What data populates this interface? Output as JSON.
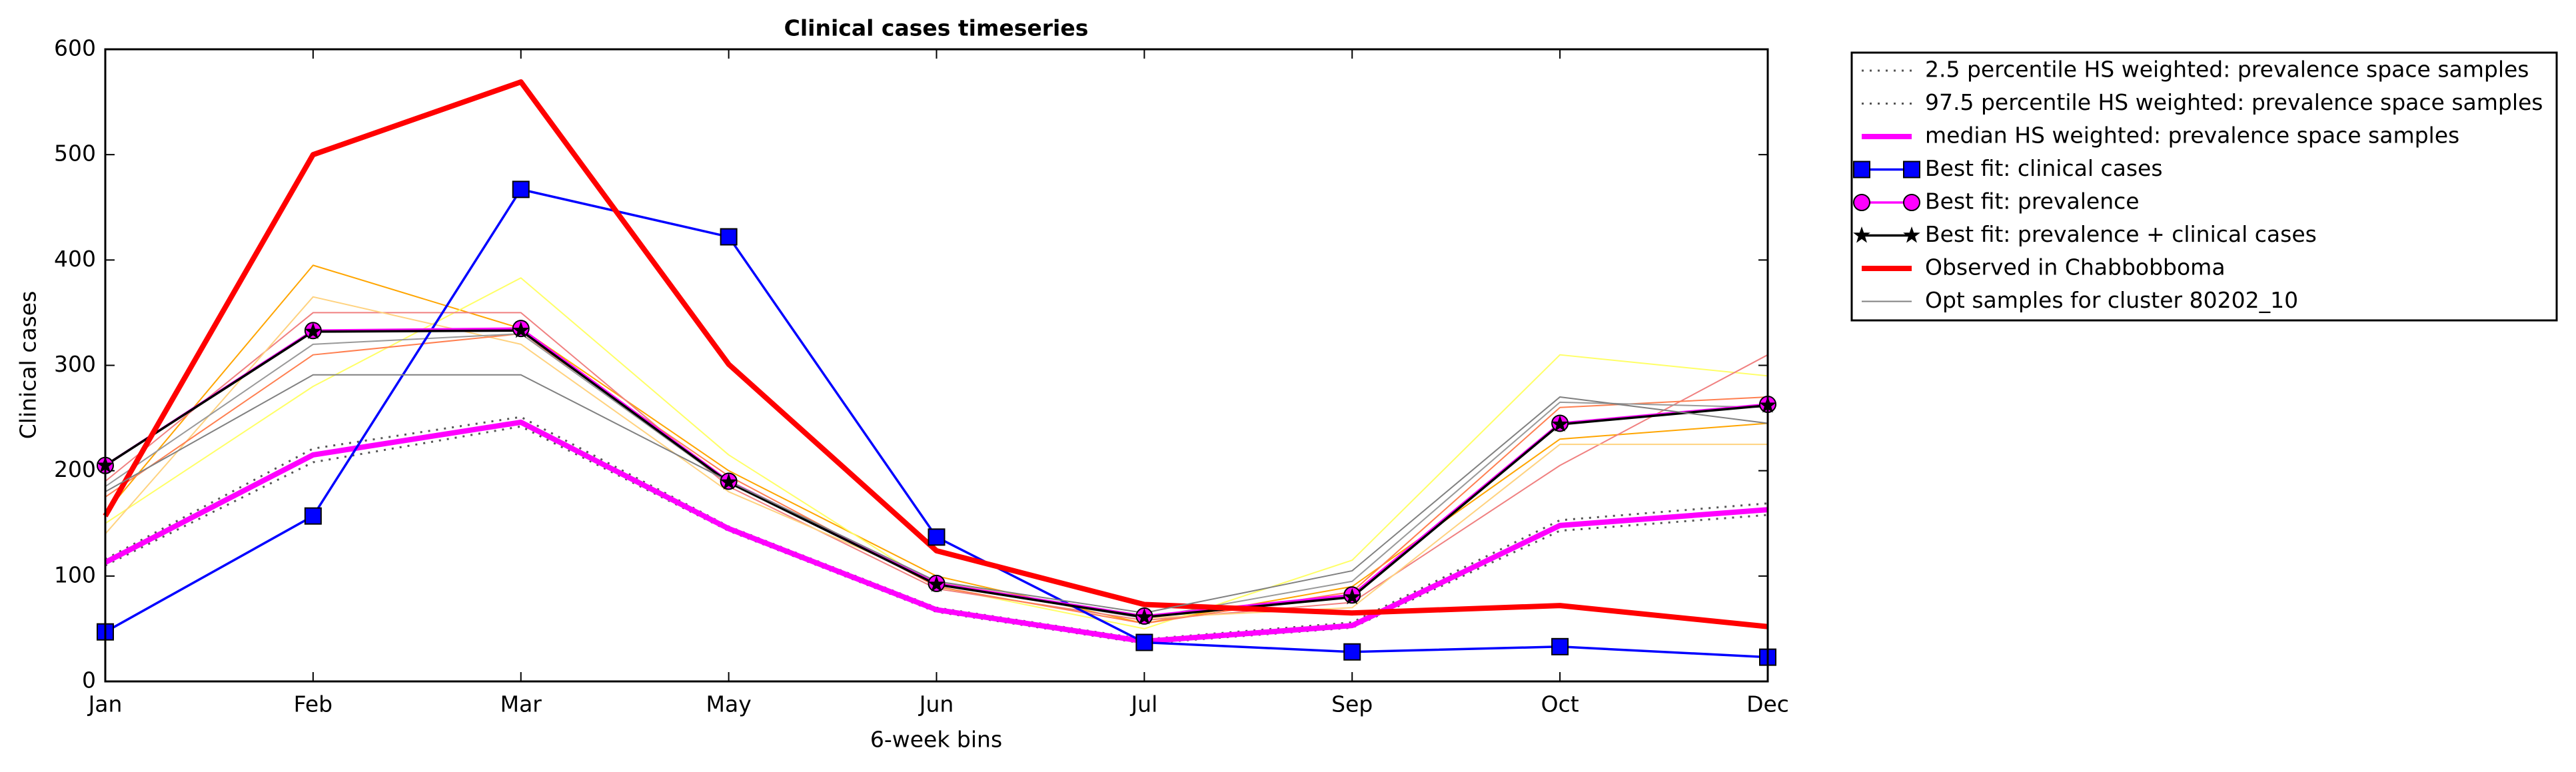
{
  "chart_data": {
    "type": "line",
    "title": "Clinical cases timeseries",
    "x_label": "6-week bins",
    "y_label": "Clinical cases",
    "categories": [
      "Jan",
      "Feb",
      "Mar",
      "May",
      "Jun",
      "Jul",
      "Sep",
      "Oct",
      "Dec"
    ],
    "ylim": [
      0,
      600
    ],
    "yticks": [
      0,
      100,
      200,
      300,
      400,
      500,
      600
    ],
    "legend": "outside-upper-right",
    "extra_lines": [
      {
        "color": "#ffa500",
        "values": [
          160,
          395,
          335,
          200,
          100,
          55,
          90,
          230,
          245
        ]
      },
      {
        "color": "#ffff66",
        "values": [
          150,
          280,
          383,
          215,
          90,
          50,
          115,
          310,
          290
        ]
      },
      {
        "color": "#f08080",
        "values": [
          190,
          350,
          350,
          185,
          88,
          58,
          75,
          205,
          310
        ]
      },
      {
        "color": "#ffd27f",
        "values": [
          140,
          365,
          320,
          180,
          95,
          60,
          70,
          225,
          225
        ]
      },
      {
        "color": "#ff7f50",
        "values": [
          175,
          310,
          330,
          195,
          90,
          55,
          85,
          260,
          270
        ]
      },
      {
        "color": "#999999",
        "values": [
          185,
          320,
          330,
          188,
          92,
          60,
          95,
          265,
          260
        ]
      }
    ],
    "series": [
      {
        "name": "2.5 percentile HS weighted: prevalence space samples",
        "color": "#555555",
        "style": "dotted",
        "marker": "none",
        "values": [
          110,
          208,
          242,
          143,
          66,
          36,
          51,
          143,
          158
        ]
      },
      {
        "name": "97.5 percentile HS weighted: prevalence space samples",
        "color": "#555555",
        "style": "dotted",
        "marker": "none",
        "values": [
          116,
          221,
          251,
          147,
          70,
          40,
          56,
          153,
          169
        ]
      },
      {
        "name": "median HS weighted: prevalence space samples",
        "color": "#ff00ff",
        "style": "thick",
        "marker": "none",
        "values": [
          113,
          215,
          246,
          145,
          68,
          38,
          53,
          148,
          163
        ]
      },
      {
        "name": "Best fit: clinical cases",
        "color": "#0000ff",
        "style": "solid",
        "marker": "square",
        "values": [
          47,
          157,
          467,
          422,
          137,
          37,
          28,
          33,
          23
        ]
      },
      {
        "name": "Best fit: prevalence",
        "color": "#ff00ff",
        "style": "solid",
        "marker": "circle",
        "values": [
          205,
          333,
          335,
          190,
          93,
          62,
          82,
          245,
          263
        ]
      },
      {
        "name": "Best fit: prevalence + clinical cases",
        "color": "#000000",
        "style": "solid",
        "marker": "star",
        "values": [
          205,
          332,
          333,
          189,
          92,
          61,
          80,
          244,
          262
        ]
      },
      {
        "name": "Observed in Chabbobboma",
        "color": "#ff0000",
        "style": "thick",
        "marker": "none",
        "values": [
          157,
          500,
          569,
          301,
          124,
          73,
          65,
          72,
          52
        ]
      },
      {
        "name": "Opt samples for cluster 80202_10",
        "color": "#808080",
        "style": "thin",
        "marker": "none",
        "values": [
          180,
          291,
          291,
          190,
          95,
          65,
          105,
          270,
          245
        ]
      }
    ]
  }
}
